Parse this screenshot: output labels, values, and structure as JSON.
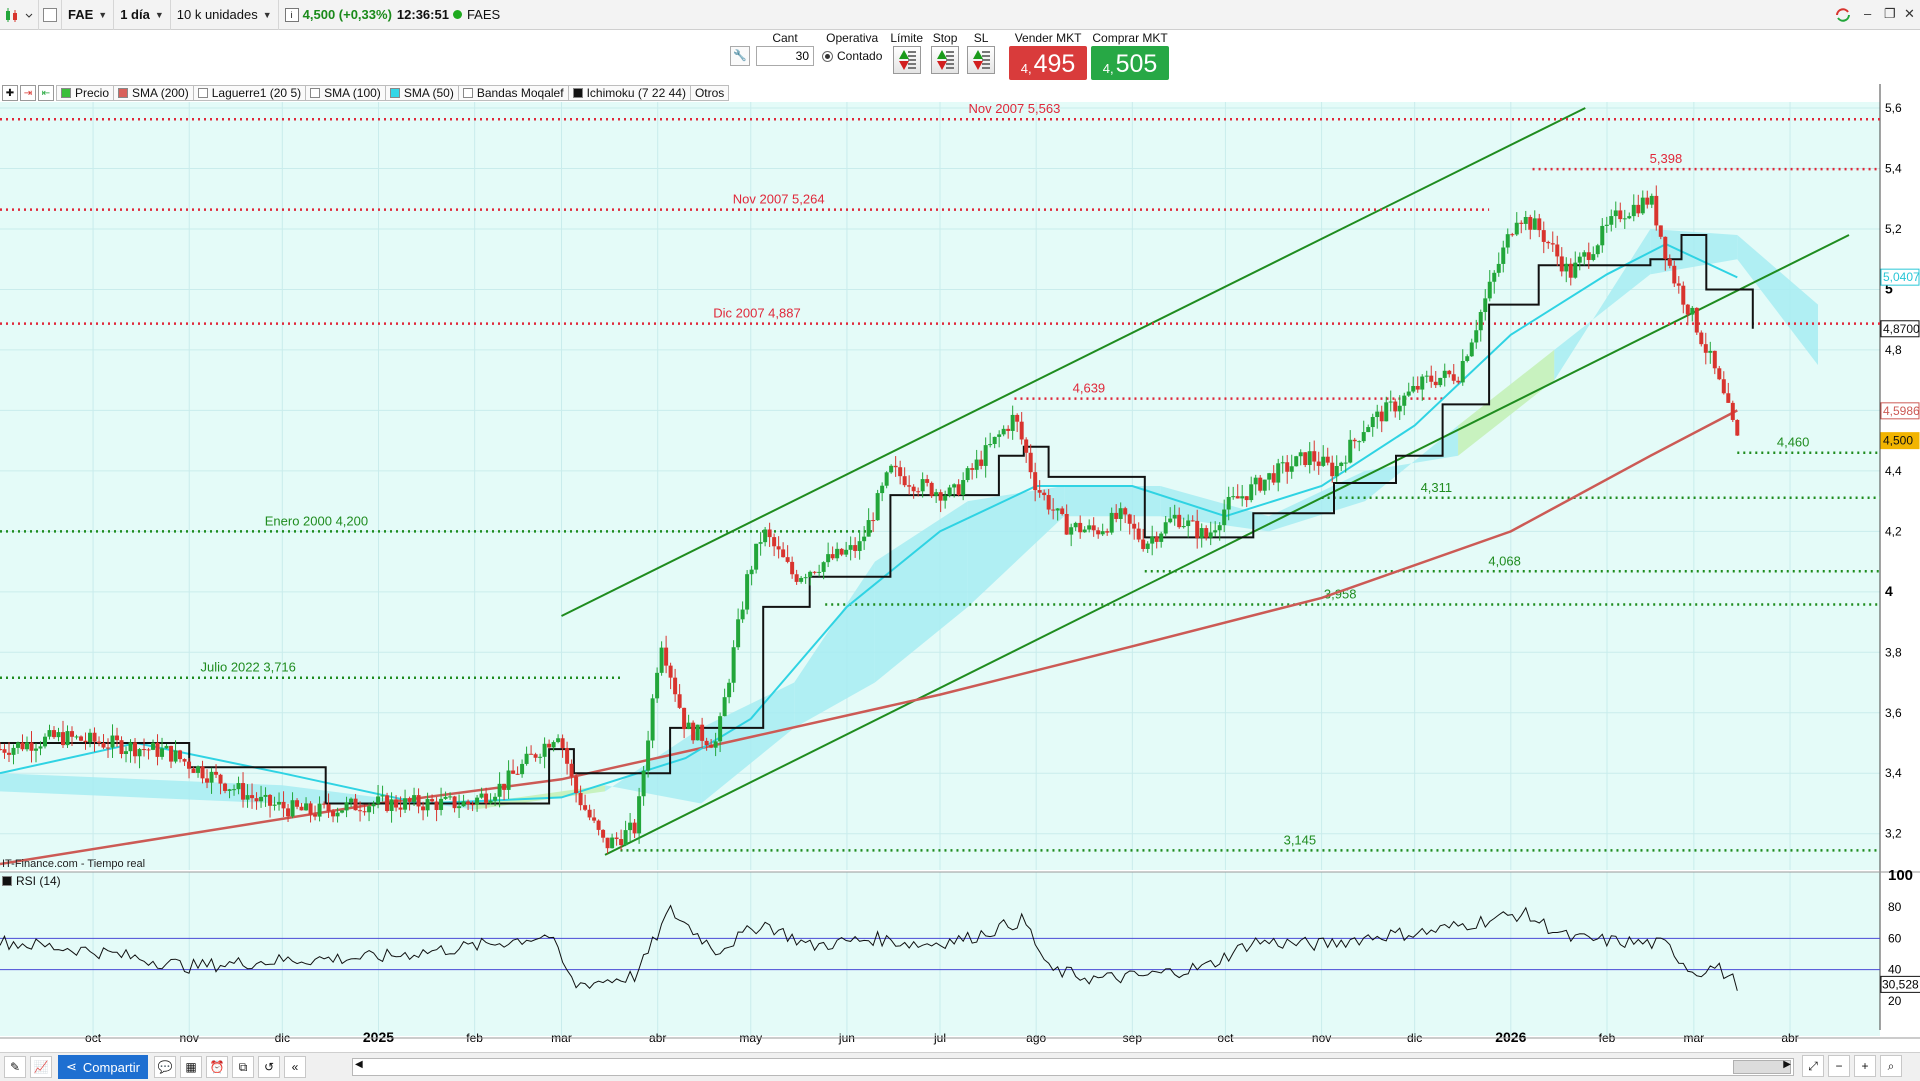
{
  "topbar": {
    "symbol": "FAE",
    "interval": "1 día",
    "lot": "10 k unidades",
    "quote": "4,500 (+0,33%)",
    "time": "12:36:51",
    "name": "FAES"
  },
  "order_panel": {
    "cant_label": "Cant",
    "cant_value": "30",
    "operativa_label": "Operativa",
    "contado_label": "Contado",
    "limite_label": "Límite",
    "stop_label": "Stop",
    "sl_label": "SL",
    "sell_label": "Vender MKT",
    "sell_small": "4,",
    "sell_big": "495",
    "buy_label": "Comprar MKT",
    "buy_small": "4,",
    "buy_big": "505"
  },
  "legend": [
    {
      "label": "Precio",
      "color": "#3cbf3c"
    },
    {
      "label": "SMA (200)",
      "color": "#d8605a"
    },
    {
      "label": "Laguerre1 (20 5)",
      "color": "#ffffff"
    },
    {
      "label": "SMA (100)",
      "color": "#ffffff"
    },
    {
      "label": "SMA (50)",
      "color": "#33d6e6"
    },
    {
      "label": "Bandas Moqalef",
      "color": "#ffffff"
    },
    {
      "label": "Ichimoku (7 22 44)",
      "color": "#111111"
    },
    {
      "label": "Otros",
      "color": ""
    }
  ],
  "source": "IT-Finance.com - Tiempo real",
  "rsi_label": "RSI (14)",
  "bottombar": {
    "share_label": "Compartir"
  },
  "colors": {
    "up": "#22a63a",
    "down": "#d8342e",
    "sma200": "#cc5a55",
    "sma50": "#2fd3e3",
    "ichimoku": "#111111",
    "cloud_bull": "#a7ecf2",
    "cloud_bear": "#c3f0b5",
    "channel": "#1f8c1f",
    "res": "#e0283a",
    "sup": "#1f8c1f",
    "bg": "#e4fbf8"
  },
  "chart_data": {
    "type": "candlestick",
    "x_range": [
      "2024-09-01",
      "2026-04-30"
    ],
    "price_axis": {
      "ylim": [
        3.08,
        5.62
      ],
      "ticks": [
        "3,2",
        "3,4",
        "3,6",
        "3,8",
        "4",
        "4,2",
        "4,4",
        "4,6",
        "4,8",
        "5",
        "5,2",
        "5,4",
        "5,6"
      ],
      "bold_ticks": [
        "4",
        "5"
      ]
    },
    "x_ticks": [
      {
        "label": "oct",
        "date": "2024-10-01",
        "bold": false
      },
      {
        "label": "nov",
        "date": "2024-11-01",
        "bold": false
      },
      {
        "label": "dic",
        "date": "2024-12-01",
        "bold": false
      },
      {
        "label": "2025",
        "date": "2025-01-01",
        "bold": true
      },
      {
        "label": "feb",
        "date": "2025-02-01",
        "bold": false
      },
      {
        "label": "mar",
        "date": "2025-03-01",
        "bold": false
      },
      {
        "label": "abr",
        "date": "2025-04-01",
        "bold": false
      },
      {
        "label": "may",
        "date": "2025-05-01",
        "bold": false
      },
      {
        "label": "jun",
        "date": "2025-06-01",
        "bold": false
      },
      {
        "label": "jul",
        "date": "2025-07-01",
        "bold": false
      },
      {
        "label": "ago",
        "date": "2025-08-01",
        "bold": false
      },
      {
        "label": "sep",
        "date": "2025-09-01",
        "bold": false
      },
      {
        "label": "oct",
        "date": "2025-10-01",
        "bold": false
      },
      {
        "label": "nov",
        "date": "2025-11-01",
        "bold": false
      },
      {
        "label": "dic",
        "date": "2025-12-01",
        "bold": false
      },
      {
        "label": "2026",
        "date": "2026-01-01",
        "bold": true
      },
      {
        "label": "feb",
        "date": "2026-02-01",
        "bold": false
      },
      {
        "label": "mar",
        "date": "2026-03-01",
        "bold": false
      },
      {
        "label": "abr",
        "date": "2026-04-01",
        "bold": false
      }
    ],
    "price_path": [
      [
        "2024-09-01",
        3.48
      ],
      [
        "2024-09-20",
        3.52
      ],
      [
        "2024-10-05",
        3.5
      ],
      [
        "2024-10-25",
        3.47
      ],
      [
        "2024-11-10",
        3.38
      ],
      [
        "2024-11-25",
        3.3
      ],
      [
        "2024-12-10",
        3.27
      ],
      [
        "2024-12-28",
        3.3
      ],
      [
        "2025-01-15",
        3.3
      ],
      [
        "2025-01-30",
        3.3
      ],
      [
        "2025-02-10",
        3.36
      ],
      [
        "2025-02-28",
        3.54
      ],
      [
        "2025-03-05",
        3.35
      ],
      [
        "2025-03-15",
        3.16
      ],
      [
        "2025-03-25",
        3.22
      ],
      [
        "2025-04-02",
        3.85
      ],
      [
        "2025-04-10",
        3.55
      ],
      [
        "2025-04-20",
        3.5
      ],
      [
        "2025-04-30",
        4.05
      ],
      [
        "2025-05-05",
        4.2
      ],
      [
        "2025-05-15",
        4.05
      ],
      [
        "2025-05-25",
        4.1
      ],
      [
        "2025-06-05",
        4.15
      ],
      [
        "2025-06-15",
        4.4
      ],
      [
        "2025-06-25",
        4.35
      ],
      [
        "2025-07-05",
        4.32
      ],
      [
        "2025-07-15",
        4.45
      ],
      [
        "2025-07-25",
        4.58
      ],
      [
        "2025-08-01",
        4.35
      ],
      [
        "2025-08-10",
        4.22
      ],
      [
        "2025-08-20",
        4.2
      ],
      [
        "2025-08-28",
        4.25
      ],
      [
        "2025-09-05",
        4.16
      ],
      [
        "2025-09-15",
        4.25
      ],
      [
        "2025-09-25",
        4.18
      ],
      [
        "2025-10-01",
        4.28
      ],
      [
        "2025-10-15",
        4.38
      ],
      [
        "2025-10-28",
        4.45
      ],
      [
        "2025-11-05",
        4.4
      ],
      [
        "2025-11-15",
        4.55
      ],
      [
        "2025-11-25",
        4.62
      ],
      [
        "2025-12-05",
        4.7
      ],
      [
        "2025-12-15",
        4.72
      ],
      [
        "2025-12-25",
        5.0
      ],
      [
        "2026-01-03",
        5.25
      ],
      [
        "2026-01-10",
        5.2
      ],
      [
        "2026-01-20",
        5.05
      ],
      [
        "2026-01-28",
        5.15
      ],
      [
        "2026-02-05",
        5.25
      ],
      [
        "2026-02-15",
        5.3
      ],
      [
        "2026-02-22",
        5.05
      ],
      [
        "2026-03-01",
        4.9
      ],
      [
        "2026-03-07",
        4.75
      ],
      [
        "2026-03-12",
        4.6
      ],
      [
        "2026-03-15",
        4.5
      ]
    ],
    "sma200": [
      [
        "2024-09-01",
        3.1
      ],
      [
        "2025-01-01",
        3.3
      ],
      [
        "2025-03-01",
        3.38
      ],
      [
        "2025-05-01",
        3.52
      ],
      [
        "2025-07-01",
        3.66
      ],
      [
        "2025-09-01",
        3.82
      ],
      [
        "2025-11-01",
        3.98
      ],
      [
        "2026-01-01",
        4.2
      ],
      [
        "2026-02-15",
        4.45
      ],
      [
        "2026-03-15",
        4.6
      ]
    ],
    "sma50": [
      [
        "2024-09-01",
        3.4
      ],
      [
        "2024-10-15",
        3.5
      ],
      [
        "2024-12-01",
        3.4
      ],
      [
        "2025-01-15",
        3.3
      ],
      [
        "2025-03-01",
        3.32
      ],
      [
        "2025-04-10",
        3.45
      ],
      [
        "2025-05-01",
        3.58
      ],
      [
        "2025-06-01",
        3.95
      ],
      [
        "2025-07-01",
        4.2
      ],
      [
        "2025-08-01",
        4.35
      ],
      [
        "2025-09-01",
        4.35
      ],
      [
        "2025-10-01",
        4.25
      ],
      [
        "2025-11-01",
        4.35
      ],
      [
        "2025-12-01",
        4.55
      ],
      [
        "2026-01-01",
        4.85
      ],
      [
        "2026-02-01",
        5.05
      ],
      [
        "2026-02-20",
        5.15
      ],
      [
        "2026-03-15",
        5.04
      ]
    ],
    "ichimoku_base": [
      [
        "2024-09-01",
        3.5
      ],
      [
        "2024-11-01",
        3.42
      ],
      [
        "2024-12-15",
        3.3
      ],
      [
        "2025-02-05",
        3.3
      ],
      [
        "2025-02-25",
        3.48
      ],
      [
        "2025-03-05",
        3.4
      ],
      [
        "2025-03-20",
        3.4
      ],
      [
        "2025-04-05",
        3.55
      ],
      [
        "2025-04-20",
        3.55
      ],
      [
        "2025-05-05",
        3.95
      ],
      [
        "2025-05-20",
        4.05
      ],
      [
        "2025-06-05",
        4.05
      ],
      [
        "2025-06-15",
        4.32
      ],
      [
        "2025-07-10",
        4.32
      ],
      [
        "2025-07-20",
        4.45
      ],
      [
        "2025-07-28",
        4.48
      ],
      [
        "2025-08-05",
        4.38
      ],
      [
        "2025-08-28",
        4.38
      ],
      [
        "2025-09-05",
        4.18
      ],
      [
        "2025-09-28",
        4.18
      ],
      [
        "2025-10-10",
        4.26
      ],
      [
        "2025-11-05",
        4.36
      ],
      [
        "2025-11-25",
        4.45
      ],
      [
        "2025-12-10",
        4.62
      ],
      [
        "2025-12-25",
        4.95
      ],
      [
        "2026-01-10",
        5.08
      ],
      [
        "2026-02-05",
        5.08
      ],
      [
        "2026-02-15",
        5.1
      ],
      [
        "2026-02-25",
        5.18
      ],
      [
        "2026-03-05",
        5.0
      ],
      [
        "2026-03-20",
        4.87
      ]
    ],
    "ichimoku_cloud": [
      [
        "2024-09-01",
        3.34,
        3.4
      ],
      [
        "2024-12-01",
        3.3,
        3.36
      ],
      [
        "2025-02-01",
        3.3,
        3.28
      ],
      [
        "2025-03-15",
        3.36,
        3.34
      ],
      [
        "2025-04-15",
        3.3,
        3.55
      ],
      [
        "2025-05-15",
        3.55,
        3.7
      ],
      [
        "2025-06-10",
        3.7,
        4.1
      ],
      [
        "2025-07-10",
        3.95,
        4.3
      ],
      [
        "2025-08-10",
        4.25,
        4.35
      ],
      [
        "2025-09-10",
        4.25,
        4.35
      ],
      [
        "2025-10-15",
        4.2,
        4.25
      ],
      [
        "2025-11-15",
        4.3,
        4.4
      ],
      [
        "2025-12-15",
        4.55,
        4.45
      ],
      [
        "2026-01-15",
        4.8,
        4.7
      ],
      [
        "2026-02-15",
        5.05,
        5.2
      ],
      [
        "2026-03-15",
        5.1,
        5.18
      ],
      [
        "2026-04-10",
        4.75,
        4.95
      ]
    ],
    "channel": {
      "upper": [
        [
          "2025-03-01",
          3.92
        ],
        [
          "2026-01-25",
          5.6
        ]
      ],
      "lower": [
        [
          "2025-03-15",
          3.13
        ],
        [
          "2026-04-20",
          5.18
        ]
      ]
    },
    "levels": [
      {
        "label": "Nov 2007 5,563",
        "value": 5.563,
        "color": "res",
        "label_date": "2025-07-25",
        "from": "2024-09-01"
      },
      {
        "label": "5,398",
        "value": 5.398,
        "color": "res",
        "label_date": "2026-02-20",
        "from": "2026-01-08"
      },
      {
        "label": "Nov 2007 5,264",
        "value": 5.264,
        "color": "res",
        "label_date": "2025-05-10",
        "from": "2024-09-01",
        "to": "2025-12-25"
      },
      {
        "label": "Dic 2007 4,887",
        "value": 4.887,
        "color": "res",
        "label_date": "2025-05-03",
        "from": "2024-09-01"
      },
      {
        "label": "4,639",
        "value": 4.639,
        "color": "res",
        "label_date": "2025-08-18",
        "from": "2025-07-25",
        "to": "2025-12-10"
      },
      {
        "label": "4,460",
        "value": 4.46,
        "color": "sup",
        "label_date": "2026-04-02",
        "from": "2026-03-15"
      },
      {
        "label": "4,311",
        "value": 4.311,
        "color": "sup",
        "label_date": "2025-12-08",
        "from": "2025-11-01"
      },
      {
        "label": "Enero 2000 4,200",
        "value": 4.2,
        "color": "sup",
        "label_date": "2024-12-12",
        "from": "2024-09-01",
        "to": "2025-06-10"
      },
      {
        "label": "4,068",
        "value": 4.068,
        "color": "sup",
        "label_date": "2025-12-30",
        "from": "2025-09-05"
      },
      {
        "label": "3,958",
        "value": 3.958,
        "color": "sup",
        "label_date": "2025-11-07",
        "from": "2025-05-25"
      },
      {
        "label": "Julio 2022 3,716",
        "value": 3.716,
        "color": "sup",
        "label_date": "2024-11-20",
        "from": "2024-09-01",
        "to": "2025-03-20"
      },
      {
        "label": "3,145",
        "value": 3.145,
        "color": "sup",
        "label_date": "2025-10-25",
        "from": "2025-03-20"
      }
    ],
    "price_markers": [
      {
        "label": "5,0407",
        "value": 5.0407,
        "color": "#29c6d6"
      },
      {
        "label": "4,8700",
        "value": 4.87,
        "color": "#111111"
      },
      {
        "label": "4,5986",
        "value": 4.5986,
        "color": "#cc5a55"
      },
      {
        "label": "4,500",
        "value": 4.5,
        "color": "#f2b400"
      }
    ],
    "rsi": {
      "ylim": [
        0,
        100
      ],
      "ticks": [
        "20",
        "40",
        "60",
        "80",
        "100"
      ],
      "bands": [
        40,
        60
      ],
      "current_label": "30,528",
      "current_value": 30.528,
      "path": [
        [
          "2024-09-01",
          58
        ],
        [
          "2024-10-01",
          52
        ],
        [
          "2024-11-01",
          42
        ],
        [
          "2024-12-01",
          46
        ],
        [
          "2025-01-01",
          48
        ],
        [
          "2025-02-01",
          55
        ],
        [
          "2025-02-25",
          62
        ],
        [
          "2025-03-05",
          30
        ],
        [
          "2025-03-25",
          36
        ],
        [
          "2025-04-05",
          78
        ],
        [
          "2025-04-20",
          52
        ],
        [
          "2025-05-05",
          70
        ],
        [
          "2025-05-20",
          55
        ],
        [
          "2025-06-10",
          60
        ],
        [
          "2025-06-25",
          56
        ],
        [
          "2025-07-10",
          60
        ],
        [
          "2025-07-28",
          72
        ],
        [
          "2025-08-05",
          40
        ],
        [
          "2025-08-20",
          34
        ],
        [
          "2025-09-05",
          36
        ],
        [
          "2025-09-25",
          42
        ],
        [
          "2025-10-10",
          58
        ],
        [
          "2025-11-01",
          56
        ],
        [
          "2025-11-20",
          62
        ],
        [
          "2025-12-05",
          64
        ],
        [
          "2025-12-25",
          72
        ],
        [
          "2026-01-05",
          76
        ],
        [
          "2026-01-20",
          60
        ],
        [
          "2026-02-05",
          58
        ],
        [
          "2026-02-20",
          56
        ],
        [
          "2026-03-01",
          38
        ],
        [
          "2026-03-08",
          42
        ],
        [
          "2026-03-15",
          31
        ]
      ]
    }
  }
}
